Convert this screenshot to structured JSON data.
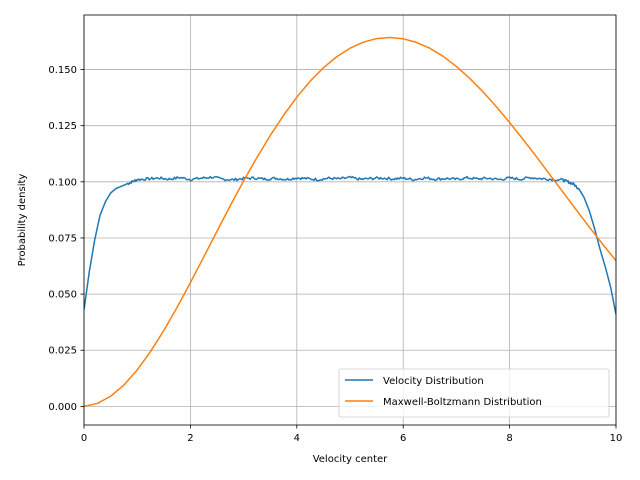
{
  "chart_data": {
    "type": "line",
    "title": "",
    "xlabel": "Velocity center",
    "ylabel": "Probability density",
    "xlim": [
      0,
      10
    ],
    "ylim": [
      -0.0083,
      0.1743
    ],
    "x_ticks": [
      0,
      2,
      4,
      6,
      8,
      10
    ],
    "x_tick_labels": [
      "0",
      "2",
      "4",
      "6",
      "8",
      "10"
    ],
    "y_ticks": [
      0.0,
      0.025,
      0.05,
      0.075,
      0.1,
      0.125,
      0.15
    ],
    "y_tick_labels": [
      "0.000",
      "0.025",
      "0.050",
      "0.075",
      "0.100",
      "0.125",
      "0.150"
    ],
    "grid": true,
    "legend_position": "lower-right",
    "series": [
      {
        "name": "Velocity Distribution",
        "color": "#1f77b4",
        "x": [
          0.0,
          0.1,
          0.2,
          0.3,
          0.4,
          0.5,
          0.6,
          0.7,
          0.8,
          0.9,
          1.0,
          1.2,
          1.4,
          1.6,
          1.8,
          2.0,
          2.2,
          2.4,
          2.6,
          2.8,
          3.0,
          3.2,
          3.4,
          3.6,
          3.8,
          4.0,
          4.2,
          4.4,
          4.6,
          4.8,
          5.0,
          5.2,
          5.4,
          5.6,
          5.8,
          6.0,
          6.2,
          6.4,
          6.6,
          6.8,
          7.0,
          7.2,
          7.4,
          7.6,
          7.8,
          8.0,
          8.2,
          8.4,
          8.6,
          8.8,
          9.0,
          9.1,
          9.2,
          9.3,
          9.4,
          9.5,
          9.6,
          9.7,
          9.8,
          9.9,
          10.0
        ],
        "y": [
          0.043,
          0.06,
          0.074,
          0.085,
          0.091,
          0.095,
          0.097,
          0.098,
          0.099,
          0.1,
          0.101,
          0.1013,
          0.1017,
          0.1012,
          0.1019,
          0.1011,
          0.1016,
          0.1021,
          0.1012,
          0.1009,
          0.1015,
          0.1017,
          0.1012,
          0.1016,
          0.1011,
          0.1018,
          0.1014,
          0.101,
          0.1016,
          0.1013,
          0.1019,
          0.1011,
          0.1015,
          0.1017,
          0.1013,
          0.1016,
          0.101,
          0.1018,
          0.1012,
          0.1015,
          0.1011,
          0.1018,
          0.1013,
          0.1016,
          0.101,
          0.1017,
          0.1012,
          0.1019,
          0.1014,
          0.1011,
          0.1008,
          0.1,
          0.099,
          0.097,
          0.093,
          0.087,
          0.079,
          0.07,
          0.062,
          0.053,
          0.041
        ]
      },
      {
        "name": "Maxwell-Boltzmann Distribution",
        "color": "#ff7f0e",
        "x": [
          0.0,
          0.25,
          0.5,
          0.75,
          1.0,
          1.25,
          1.5,
          1.75,
          2.0,
          2.25,
          2.5,
          2.75,
          3.0,
          3.25,
          3.5,
          3.75,
          4.0,
          4.25,
          4.5,
          4.75,
          5.0,
          5.25,
          5.5,
          5.75,
          6.0,
          6.25,
          6.5,
          6.75,
          7.0,
          7.25,
          7.5,
          7.75,
          8.0,
          8.25,
          8.5,
          8.75,
          9.0,
          9.25,
          9.5,
          9.75,
          10.0
        ],
        "y": [
          0.0,
          0.0013,
          0.0045,
          0.0095,
          0.0162,
          0.0244,
          0.0338,
          0.0441,
          0.0551,
          0.0665,
          0.078,
          0.0894,
          0.1004,
          0.1108,
          0.1206,
          0.1296,
          0.1377,
          0.1448,
          0.1508,
          0.1557,
          0.1595,
          0.1622,
          0.1638,
          0.1643,
          0.1637,
          0.1621,
          0.1595,
          0.1559,
          0.1514,
          0.1461,
          0.1401,
          0.1335,
          0.1264,
          0.119,
          0.1113,
          0.1034,
          0.0955,
          0.0876,
          0.0798,
          0.0722,
          0.0649
        ],
        "display_note": ""
      }
    ]
  }
}
